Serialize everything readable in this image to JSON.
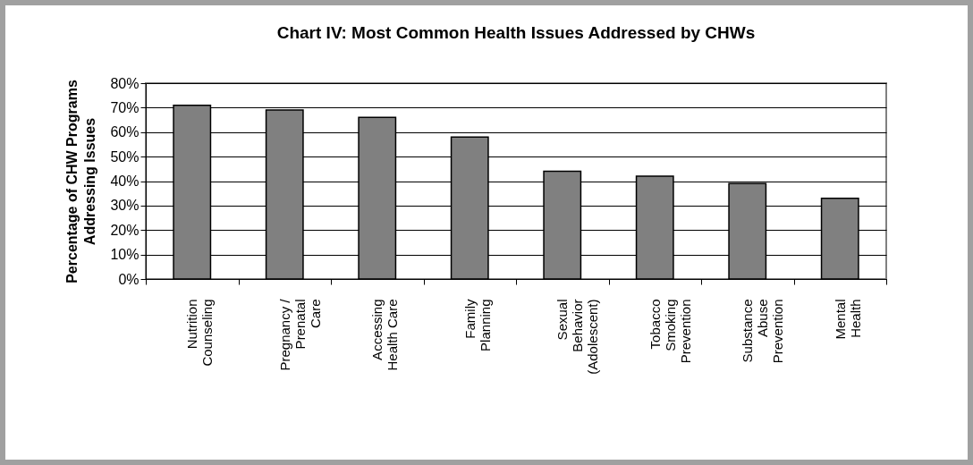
{
  "chart_data": {
    "type": "bar",
    "title": "Chart IV: Most Common Health Issues Addressed by CHWs",
    "ylabel": "Percentage of CHW Programs\nAddressing Issues",
    "categories": [
      "Nutrition\nCounseling",
      "Pregnancy /\nPrenatal\nCare",
      "Accessing\nHealth Care",
      "Family\nPlanning",
      "Sexual\nBehavior\n(Adolescent)",
      "Tobacco\nSmoking\nPrevention",
      "Substance\nAbuse\nPrevention",
      "Mental\nHealth"
    ],
    "values": [
      71,
      69,
      66,
      58,
      44,
      42,
      39,
      33
    ],
    "color": "#808080",
    "ylim": [
      0,
      80
    ],
    "yticks": [
      {
        "value": 0,
        "label": "0%"
      },
      {
        "value": 10,
        "label": "10%"
      },
      {
        "value": 20,
        "label": "20%"
      },
      {
        "value": 30,
        "label": "30%"
      },
      {
        "value": 40,
        "label": "40%"
      },
      {
        "value": 50,
        "label": "50%"
      },
      {
        "value": 60,
        "label": "60%"
      },
      {
        "value": 70,
        "label": "70%"
      },
      {
        "value": 80,
        "label": "80%"
      }
    ],
    "grid": "y"
  }
}
